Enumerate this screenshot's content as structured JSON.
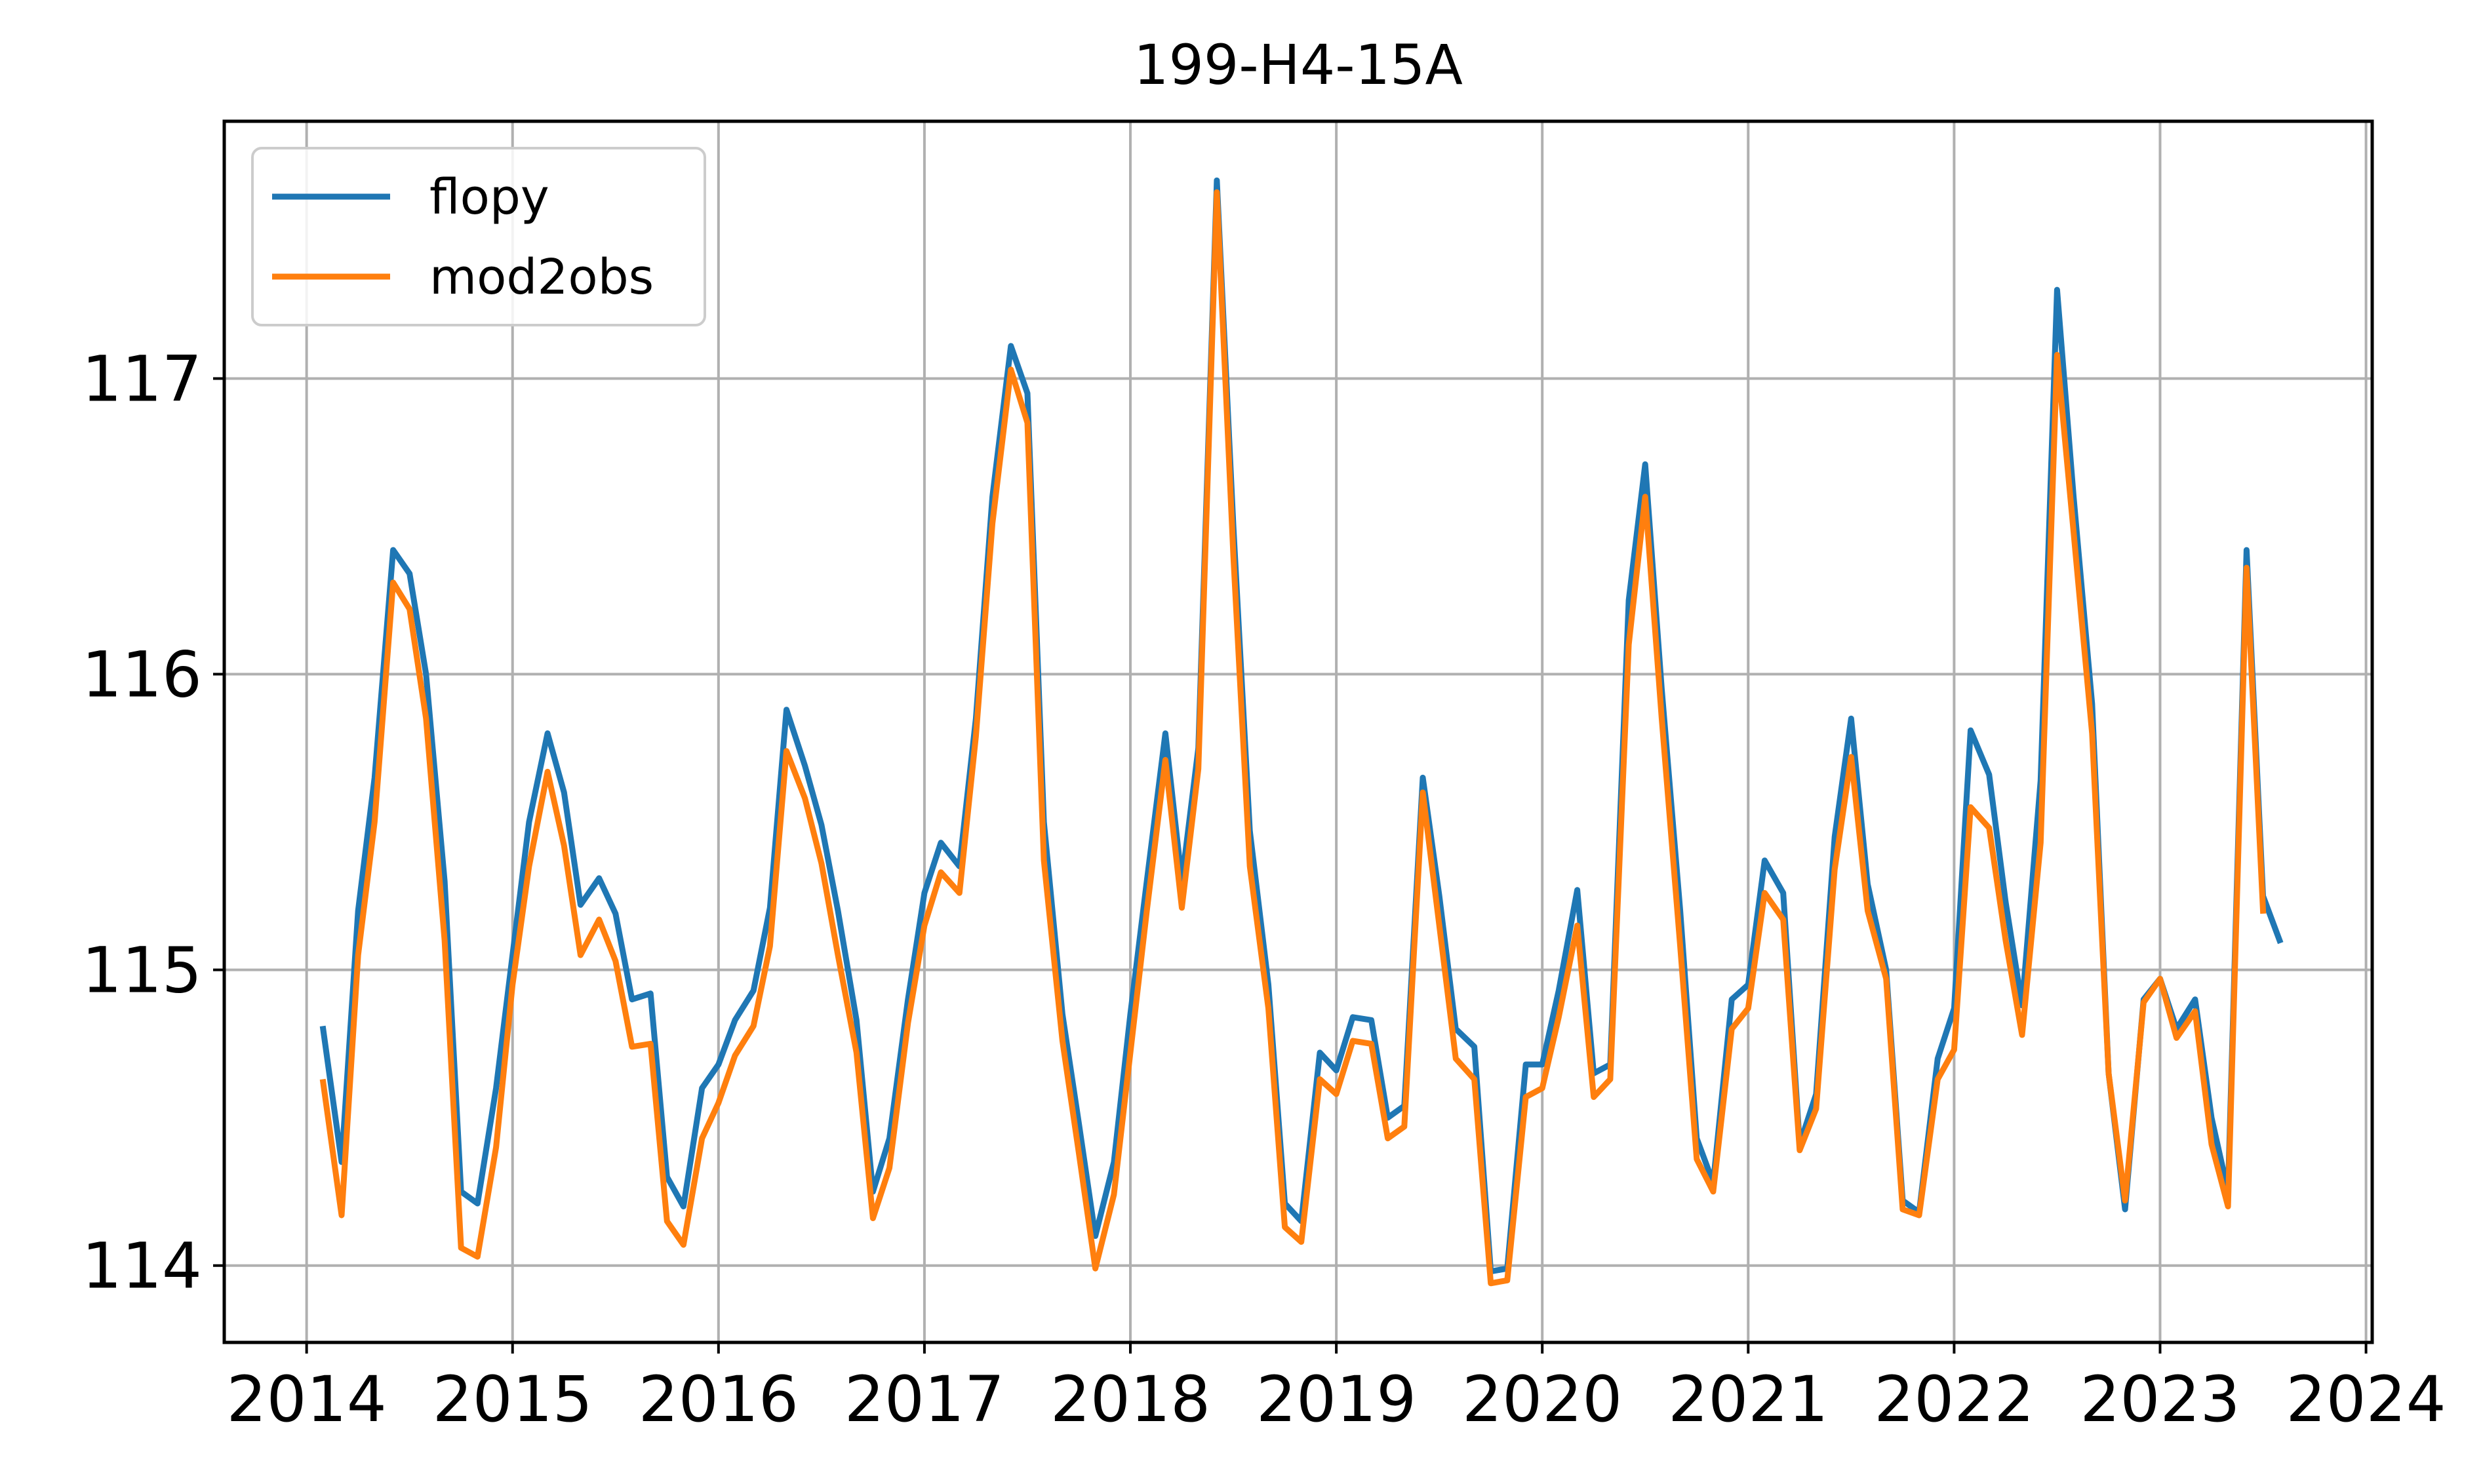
{
  "chart_data": {
    "type": "line",
    "title": "199-H4-15A",
    "xlabel": "",
    "ylabel": "",
    "xlim": [
      2013.6,
      2024.03
    ],
    "ylim": [
      113.74,
      117.87
    ],
    "xticks": [
      2014,
      2015,
      2016,
      2017,
      2018,
      2019,
      2020,
      2021,
      2022,
      2023,
      2024
    ],
    "yticks": [
      114,
      115,
      116,
      117
    ],
    "grid": true,
    "legend": {
      "position": "top-left",
      "entries": [
        "flopy",
        "mod2obs"
      ]
    },
    "series": [
      {
        "name": "flopy",
        "color": "#1f77b4",
        "x": [
          2014.08,
          2014.17,
          2014.25,
          2014.33,
          2014.42,
          2014.5,
          2014.58,
          2014.67,
          2014.75,
          2014.83,
          2014.92,
          2015.0,
          2015.08,
          2015.17,
          2015.25,
          2015.33,
          2015.42,
          2015.5,
          2015.58,
          2015.67,
          2015.75,
          2015.83,
          2015.92,
          2016.0,
          2016.08,
          2016.17,
          2016.25,
          2016.33,
          2016.42,
          2016.5,
          2016.58,
          2016.67,
          2016.75,
          2016.83,
          2016.92,
          2017.0,
          2017.08,
          2017.17,
          2017.25,
          2017.33,
          2017.42,
          2017.5,
          2017.58,
          2017.67,
          2017.75,
          2017.83,
          2017.92,
          2018.0,
          2018.08,
          2018.17,
          2018.25,
          2018.33,
          2018.42,
          2018.5,
          2018.58,
          2018.67,
          2018.75,
          2018.83,
          2018.92,
          2019.0,
          2019.08,
          2019.17,
          2019.25,
          2019.33,
          2019.42,
          2019.5,
          2019.58,
          2019.67,
          2019.75,
          2019.83,
          2019.92,
          2020.0,
          2020.08,
          2020.17,
          2020.25,
          2020.33,
          2020.42,
          2020.5,
          2020.58,
          2020.67,
          2020.75,
          2020.83,
          2020.92,
          2021.0,
          2021.08,
          2021.17,
          2021.25,
          2021.33,
          2021.42,
          2021.5,
          2021.58,
          2021.67,
          2021.75,
          2021.83,
          2021.92,
          2022.0,
          2022.08,
          2022.17,
          2022.25,
          2022.33,
          2022.42,
          2022.5,
          2022.58,
          2022.67,
          2022.75,
          2022.83,
          2022.92,
          2023.0,
          2023.08,
          2023.17,
          2023.25,
          2023.33,
          2023.42,
          2023.5,
          2023.58
        ],
        "values": [
          114.8,
          114.35,
          115.2,
          115.65,
          116.42,
          116.34,
          116.0,
          115.3,
          114.25,
          114.21,
          114.6,
          115.05,
          115.5,
          115.8,
          115.6,
          115.22,
          115.31,
          115.19,
          114.9,
          114.92,
          114.3,
          114.2,
          114.6,
          114.68,
          114.83,
          114.93,
          115.21,
          115.88,
          115.69,
          115.49,
          115.2,
          114.83,
          114.25,
          114.43,
          114.9,
          115.26,
          115.43,
          115.35,
          115.85,
          116.6,
          117.11,
          116.95,
          115.5,
          114.85,
          114.48,
          114.1,
          114.35,
          114.85,
          115.3,
          115.8,
          115.3,
          115.75,
          117.67,
          116.5,
          115.47,
          114.95,
          114.21,
          114.15,
          114.72,
          114.66,
          114.84,
          114.83,
          114.5,
          114.54,
          115.65,
          115.25,
          114.8,
          114.74,
          113.98,
          113.99,
          114.68,
          114.68,
          114.93,
          115.27,
          114.65,
          114.68,
          116.25,
          116.71,
          115.95,
          115.2,
          114.43,
          114.28,
          114.9,
          114.95,
          115.37,
          115.26,
          114.41,
          114.58,
          115.45,
          115.85,
          115.29,
          115.0,
          114.22,
          114.18,
          114.7,
          114.87,
          115.81,
          115.66,
          115.23,
          114.88,
          115.64,
          117.3,
          116.6,
          115.9,
          114.65,
          114.19,
          114.9,
          114.97,
          114.8,
          114.9,
          114.5,
          114.25,
          116.42,
          115.25,
          115.1
        ]
      },
      {
        "name": "mod2obs",
        "color": "#ff7f0e",
        "x": [
          2014.08,
          2014.17,
          2014.25,
          2014.33,
          2014.42,
          2014.5,
          2014.58,
          2014.67,
          2014.75,
          2014.83,
          2014.92,
          2015.0,
          2015.08,
          2015.17,
          2015.25,
          2015.33,
          2015.42,
          2015.5,
          2015.58,
          2015.67,
          2015.75,
          2015.83,
          2015.92,
          2016.0,
          2016.08,
          2016.17,
          2016.25,
          2016.33,
          2016.42,
          2016.5,
          2016.58,
          2016.67,
          2016.75,
          2016.83,
          2016.92,
          2017.0,
          2017.08,
          2017.17,
          2017.25,
          2017.33,
          2017.42,
          2017.5,
          2017.58,
          2017.67,
          2017.75,
          2017.83,
          2017.92,
          2018.0,
          2018.08,
          2018.17,
          2018.25,
          2018.33,
          2018.42,
          2018.5,
          2018.58,
          2018.67,
          2018.75,
          2018.83,
          2018.92,
          2019.0,
          2019.08,
          2019.17,
          2019.25,
          2019.33,
          2019.42,
          2019.5,
          2019.58,
          2019.67,
          2019.75,
          2019.83,
          2019.92,
          2020.0,
          2020.08,
          2020.17,
          2020.25,
          2020.33,
          2020.42,
          2020.5,
          2020.58,
          2020.67,
          2020.75,
          2020.83,
          2020.92,
          2021.0,
          2021.08,
          2021.17,
          2021.25,
          2021.33,
          2021.42,
          2021.5,
          2021.58,
          2021.67,
          2021.75,
          2021.83,
          2021.92,
          2022.0,
          2022.08,
          2022.17,
          2022.25,
          2022.33,
          2022.42,
          2022.5,
          2022.58,
          2022.67,
          2022.75,
          2022.83,
          2022.92,
          2023.0,
          2023.08,
          2023.17,
          2023.25,
          2023.33,
          2023.42,
          2023.5
        ],
        "values": [
          114.62,
          114.17,
          115.05,
          115.5,
          116.31,
          116.22,
          115.85,
          115.1,
          114.06,
          114.03,
          114.4,
          114.95,
          115.35,
          115.67,
          115.42,
          115.05,
          115.17,
          115.03,
          114.74,
          114.75,
          114.15,
          114.07,
          114.43,
          114.55,
          114.71,
          114.81,
          115.08,
          115.74,
          115.58,
          115.36,
          115.05,
          114.72,
          114.16,
          114.33,
          114.82,
          115.15,
          115.33,
          115.26,
          115.79,
          116.51,
          117.03,
          116.85,
          115.37,
          114.76,
          114.38,
          113.99,
          114.24,
          114.72,
          115.2,
          115.71,
          115.21,
          115.68,
          117.63,
          116.4,
          115.35,
          114.87,
          114.13,
          114.08,
          114.63,
          114.58,
          114.76,
          114.75,
          114.43,
          114.47,
          115.6,
          115.15,
          114.7,
          114.63,
          113.94,
          113.95,
          114.57,
          114.6,
          114.84,
          115.15,
          114.57,
          114.63,
          116.1,
          116.6,
          115.85,
          115.08,
          114.36,
          114.25,
          114.8,
          114.87,
          115.26,
          115.17,
          114.39,
          114.53,
          115.34,
          115.72,
          115.2,
          114.97,
          114.19,
          114.17,
          114.63,
          114.73,
          115.55,
          115.48,
          115.1,
          114.78,
          115.43,
          117.08,
          116.48,
          115.8,
          114.65,
          114.22,
          114.89,
          114.97,
          114.77,
          114.86,
          114.41,
          114.2,
          116.36,
          115.2
        ]
      }
    ]
  }
}
